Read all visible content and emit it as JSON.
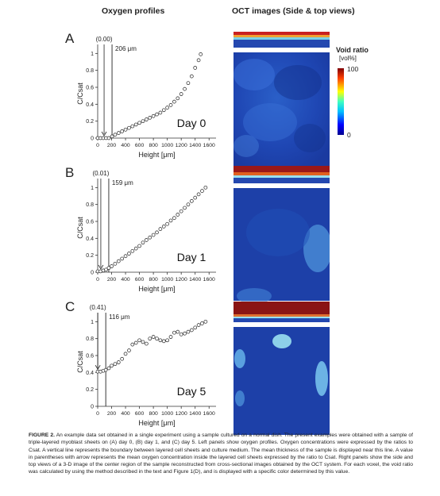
{
  "headers": {
    "left": "Oxygen profiles",
    "right": "OCT images (Side & top views)"
  },
  "colorbar": {
    "title": "Void ratio",
    "unit": "[vol%]",
    "max_label": "100",
    "min_label": "0"
  },
  "caption": {
    "figure_label": "FIGURE 2.",
    "text": "An example data set obtained in a single experiment using a sample cultured on a normal dish. The present examples were obtained with a sample of triple-layered myoblast sheets on (A) day 0, (B) day 1, and (C) day 5. Left panels show oxygen profiles. Oxygen concentrations were expressed by the ratios to Csat. A vertical line represents the boundary between layered cell sheets and culture medium. The mean thickness of the sample is displayed near this line. A value in parentheses with arrow represents the mean oxygen concentration inside the layered cell sheets expressed by the ratio to Csat. Right panels show the side and top views of a 3-D image of the center region of the sample reconstructed from cross-sectional images obtained by the OCT system. For each voxel, the void ratio was calculated by using the method described in the text and Figure 1(D), and is displayed with a specific color determined by this value."
  },
  "chart_data": [
    {
      "type": "scatter",
      "panel": "A",
      "day_label": "Day 0",
      "xlabel": "Height [μm]",
      "ylabel": "C/Csat",
      "xlim": [
        0,
        1700
      ],
      "ylim": [
        0,
        1.05
      ],
      "xticks": [
        0,
        200,
        400,
        600,
        800,
        1000,
        1200,
        1400,
        1600
      ],
      "yticks": [
        0,
        0.2,
        0.4,
        0.6,
        0.8,
        1
      ],
      "boundary_x": 206,
      "boundary_label": "206 μm",
      "mean_value_label": "(0.00)",
      "x": [
        0,
        40,
        80,
        120,
        160,
        206,
        250,
        300,
        350,
        400,
        450,
        500,
        550,
        600,
        650,
        700,
        750,
        800,
        850,
        900,
        950,
        1000,
        1050,
        1100,
        1150,
        1200,
        1250,
        1300,
        1350,
        1400,
        1450,
        1480
      ],
      "y": [
        0,
        0,
        0,
        0,
        0,
        0.02,
        0.04,
        0.06,
        0.08,
        0.1,
        0.12,
        0.14,
        0.16,
        0.18,
        0.2,
        0.22,
        0.24,
        0.26,
        0.28,
        0.3,
        0.33,
        0.36,
        0.39,
        0.43,
        0.47,
        0.52,
        0.58,
        0.65,
        0.73,
        0.83,
        0.92,
        0.99
      ]
    },
    {
      "type": "scatter",
      "panel": "B",
      "day_label": "Day 1",
      "xlabel": "Height [μm]",
      "ylabel": "C/Csat",
      "xlim": [
        0,
        1700
      ],
      "ylim": [
        0,
        1.05
      ],
      "xticks": [
        0,
        200,
        400,
        600,
        800,
        1000,
        1200,
        1400,
        1600
      ],
      "yticks": [
        0,
        0.2,
        0.4,
        0.6,
        0.8,
        1
      ],
      "boundary_x": 159,
      "boundary_label": "159 μm",
      "mean_value_label": "(0.01)",
      "x": [
        0,
        40,
        80,
        120,
        159,
        200,
        250,
        300,
        350,
        400,
        450,
        500,
        550,
        600,
        650,
        700,
        750,
        800,
        850,
        900,
        950,
        1000,
        1050,
        1100,
        1150,
        1200,
        1250,
        1300,
        1350,
        1400,
        1450,
        1500,
        1550
      ],
      "y": [
        0.01,
        0.01,
        0.02,
        0.03,
        0.05,
        0.07,
        0.1,
        0.13,
        0.16,
        0.19,
        0.22,
        0.25,
        0.28,
        0.31,
        0.35,
        0.38,
        0.41,
        0.44,
        0.47,
        0.51,
        0.54,
        0.57,
        0.61,
        0.64,
        0.68,
        0.72,
        0.76,
        0.8,
        0.84,
        0.88,
        0.92,
        0.96,
        1
      ]
    },
    {
      "type": "scatter",
      "panel": "C",
      "day_label": "Day 5",
      "xlabel": "Height [μm]",
      "ylabel": "C/Csat",
      "xlim": [
        0,
        1700
      ],
      "ylim": [
        0,
        1.05
      ],
      "xticks": [
        0,
        200,
        400,
        600,
        800,
        1000,
        1200,
        1400,
        1600
      ],
      "yticks": [
        0,
        0.2,
        0.4,
        0.6,
        0.8,
        1
      ],
      "boundary_x": 116,
      "boundary_label": "116 μm",
      "mean_value_label": "(0.41)",
      "x": [
        0,
        40,
        80,
        116,
        160,
        200,
        250,
        300,
        350,
        400,
        450,
        500,
        550,
        600,
        650,
        700,
        750,
        800,
        850,
        900,
        950,
        1000,
        1050,
        1100,
        1150,
        1200,
        1250,
        1300,
        1350,
        1400,
        1450,
        1500,
        1550
      ],
      "y": [
        0.41,
        0.41,
        0.42,
        0.43,
        0.45,
        0.48,
        0.5,
        0.52,
        0.56,
        0.62,
        0.66,
        0.73,
        0.75,
        0.78,
        0.76,
        0.74,
        0.8,
        0.82,
        0.8,
        0.78,
        0.77,
        0.78,
        0.82,
        0.87,
        0.88,
        0.85,
        0.86,
        0.88,
        0.9,
        0.93,
        0.96,
        0.98,
        1
      ]
    }
  ]
}
